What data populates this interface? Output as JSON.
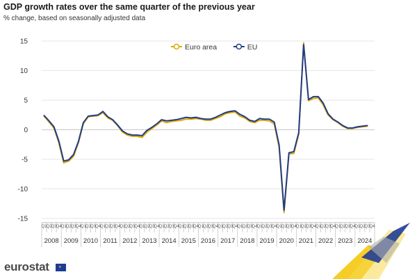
{
  "header": {
    "title": "GDP growth rates over the same quarter of the previous year",
    "subtitle": "% change, based on seasonally adjusted data"
  },
  "brand": {
    "logo_text": "eurostat",
    "flag_icon": "eu-flag-icon"
  },
  "chart_data": {
    "type": "line",
    "title": "GDP growth rates over the same quarter of the previous year",
    "subtitle": "% change, based on seasonally adjusted data",
    "xlabel": "",
    "ylabel": "",
    "ylim": [
      -15,
      15
    ],
    "yticks": [
      15,
      10,
      5,
      0,
      -5,
      -10,
      -15
    ],
    "grid": true,
    "legend_position": "top-center",
    "quarter_labels": [
      "Q1",
      "Q2",
      "Q3",
      "Q4"
    ],
    "years": [
      "2008",
      "2009",
      "2010",
      "2011",
      "2012",
      "2013",
      "2014",
      "2015",
      "2016",
      "2017",
      "2018",
      "2019",
      "2020",
      "2021",
      "2022",
      "2023",
      "2024"
    ],
    "series": [
      {
        "name": "Euro area",
        "color": "#e0a800",
        "values": [
          2.3,
          1.3,
          0.3,
          -2.2,
          -5.6,
          -5.3,
          -4.5,
          -2.2,
          1.0,
          2.2,
          2.3,
          2.4,
          2.9,
          2.0,
          1.6,
          0.7,
          -0.4,
          -0.9,
          -1.1,
          -1.1,
          -1.3,
          -0.4,
          0.2,
          0.8,
          1.5,
          1.2,
          1.4,
          1.5,
          1.6,
          1.8,
          1.8,
          1.9,
          1.8,
          1.6,
          1.6,
          1.9,
          2.2,
          2.7,
          2.9,
          3.0,
          2.3,
          2.0,
          1.4,
          1.2,
          1.6,
          1.6,
          1.5,
          1.0,
          -3.0,
          -14.0,
          -4.1,
          -4.0,
          -0.8,
          14.7,
          4.9,
          5.3,
          5.4,
          4.2,
          2.5,
          1.7,
          1.2,
          0.6,
          0.2,
          0.2,
          0.4,
          0.5,
          0.6
        ]
      },
      {
        "name": "EU",
        "color": "#1f3c88",
        "values": [
          2.4,
          1.5,
          0.5,
          -1.9,
          -5.3,
          -5.1,
          -4.2,
          -2.0,
          1.2,
          2.3,
          2.4,
          2.5,
          3.1,
          2.2,
          1.7,
          0.8,
          -0.2,
          -0.7,
          -0.9,
          -0.9,
          -1.0,
          -0.1,
          0.4,
          1.0,
          1.7,
          1.5,
          1.6,
          1.7,
          1.9,
          2.1,
          2.0,
          2.1,
          1.9,
          1.8,
          1.8,
          2.1,
          2.5,
          2.9,
          3.1,
          3.2,
          2.6,
          2.2,
          1.6,
          1.4,
          1.9,
          1.8,
          1.8,
          1.3,
          -2.6,
          -13.6,
          -3.9,
          -3.7,
          -0.5,
          14.4,
          5.1,
          5.6,
          5.6,
          4.5,
          2.7,
          1.8,
          1.3,
          0.7,
          0.3,
          0.3,
          0.5,
          0.6,
          0.7
        ]
      }
    ]
  }
}
